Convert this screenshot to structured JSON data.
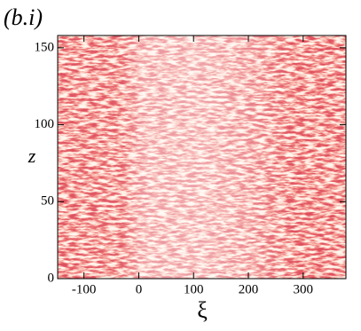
{
  "chart_data": {
    "type": "heatmap",
    "title": "(b.i)",
    "x_label": "ξ",
    "y_label": "z",
    "xlim": [
      -148,
      378
    ],
    "ylim": [
      0,
      158
    ],
    "xticks": [
      -100,
      0,
      100,
      200,
      300
    ],
    "yticks": [
      0,
      50,
      100,
      150
    ]
  }
}
